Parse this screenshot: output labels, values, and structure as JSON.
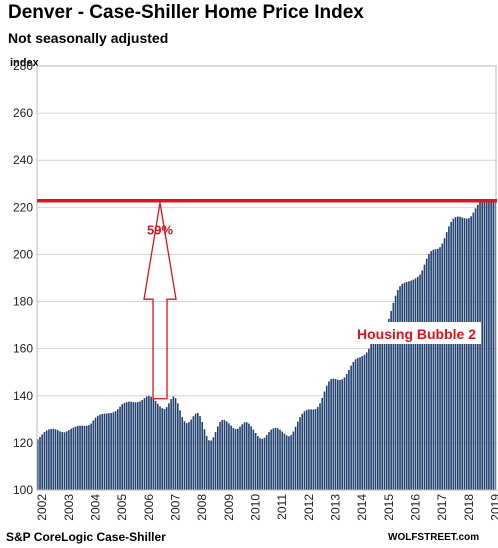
{
  "title": "Denver  - Case-Shiller Home Price Index",
  "subtitle": "Not seasonally adjusted",
  "source": "S&P CoreLogic Case-Shiller",
  "watermark": "WOLFSTREET.com",
  "colors": {
    "bar": "#1f3f6e",
    "reference_line": "#e0161e",
    "annotation": "#d8141c"
  },
  "chart_data": {
    "type": "bar",
    "title": "Denver  - Case-Shiller Home Price Index",
    "subtitle": "Not seasonally adjusted",
    "ylabel": "index",
    "xlabel": "",
    "ylim": [
      100,
      280
    ],
    "yticks": [
      100,
      120,
      140,
      160,
      180,
      200,
      220,
      240,
      260,
      280
    ],
    "year_labels": [
      "2002",
      "2003",
      "2004",
      "2005",
      "2006",
      "2007",
      "2008",
      "2009",
      "2010",
      "2011",
      "2012",
      "2013",
      "2014",
      "2015",
      "2016",
      "2017",
      "2018",
      "2019"
    ],
    "grid": true,
    "frequency": "monthly",
    "start": "2002-01",
    "series": [
      {
        "name": "",
        "values": [
          121.5,
          122.5,
          123.6,
          124.6,
          125.3,
          125.7,
          125.9,
          126.0,
          125.8,
          125.4,
          124.9,
          124.6,
          124.5,
          124.9,
          125.4,
          126.0,
          126.5,
          126.9,
          127.2,
          127.3,
          127.3,
          127.2,
          127.3,
          127.6,
          128.2,
          129.5,
          130.7,
          131.5,
          132.0,
          132.3,
          132.4,
          132.5,
          132.6,
          132.7,
          133.0,
          133.5,
          134.3,
          135.4,
          136.4,
          137.0,
          137.3,
          137.5,
          137.5,
          137.3,
          137.2,
          137.3,
          137.6,
          138.2,
          139.0,
          139.7,
          140.0,
          139.6,
          138.8,
          137.8,
          136.6,
          135.5,
          134.7,
          134.4,
          135.2,
          136.8,
          138.6,
          139.7,
          139.0,
          136.8,
          133.8,
          131.0,
          129.2,
          128.4,
          128.8,
          129.9,
          131.3,
          132.4,
          132.7,
          131.4,
          128.9,
          125.8,
          122.9,
          121.1,
          121.0,
          122.4,
          124.6,
          127.0,
          128.9,
          129.8,
          129.7,
          129.1,
          128.3,
          127.3,
          126.3,
          125.8,
          126.0,
          126.9,
          127.9,
          128.7,
          128.8,
          128.2,
          127.0,
          125.6,
          124.2,
          122.9,
          122.0,
          121.7,
          122.2,
          123.3,
          124.6,
          125.6,
          126.2,
          126.4,
          126.2,
          125.6,
          124.8,
          123.9,
          123.2,
          122.8,
          123.3,
          124.8,
          126.9,
          129.0,
          130.9,
          132.4,
          133.4,
          134.0,
          134.2,
          134.2,
          134.2,
          134.4,
          135.2,
          136.8,
          139.1,
          141.8,
          144.3,
          146.1,
          147.1,
          147.3,
          147.1,
          146.8,
          146.7,
          147.0,
          147.8,
          149.2,
          151.0,
          152.8,
          154.4,
          155.5,
          156.0,
          156.4,
          156.8,
          157.4,
          158.4,
          160.0,
          162.1,
          164.3,
          166.2,
          167.5,
          168.2,
          168.5,
          168.9,
          170.2,
          172.7,
          176.0,
          179.4,
          182.5,
          184.9,
          186.5,
          187.5,
          188.0,
          188.3,
          188.6,
          188.9,
          189.3,
          189.8,
          190.5,
          191.5,
          193.2,
          195.7,
          198.2,
          200.2,
          201.4,
          202.0,
          202.2,
          202.4,
          203.1,
          204.6,
          206.9,
          209.5,
          211.9,
          213.8,
          215.2,
          215.9,
          216.1,
          216.0,
          215.7,
          215.4,
          215.2,
          215.4,
          216.2,
          217.8,
          219.6,
          221.1,
          222.2,
          222.8,
          223.0,
          223.1,
          223.1,
          223.0,
          222.9,
          223.0
        ]
      }
    ],
    "reference_line": {
      "value": 222.8
    },
    "annotations": [
      {
        "text": "59%",
        "type": "arrow",
        "from": 140.0,
        "to": 222.8,
        "date": "2006-08"
      },
      {
        "text": "Housing Bubble 2"
      }
    ]
  }
}
